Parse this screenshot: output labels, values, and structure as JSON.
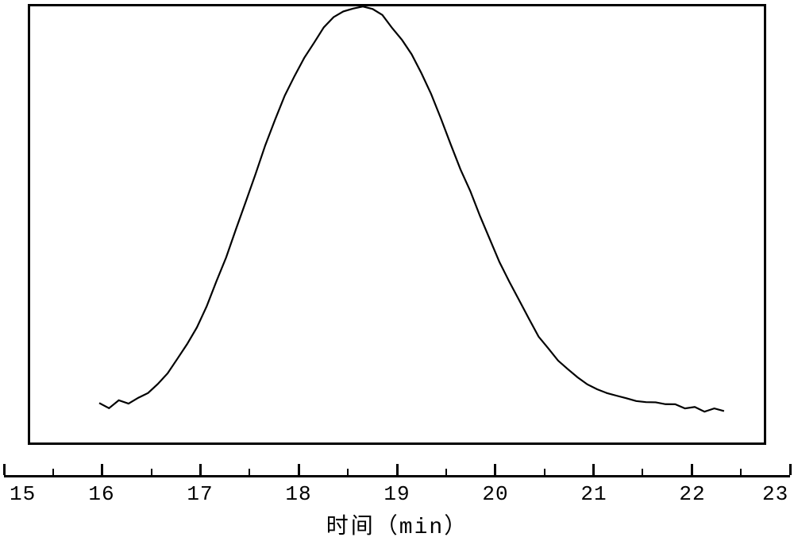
{
  "chart": {
    "type": "line",
    "background_color": "#ffffff",
    "border_color": "#000000",
    "border_width": 3,
    "curve_color": "#000000",
    "curve_width": 2.2,
    "xlim": [
      15,
      23
    ],
    "x_major_ticks": [
      15,
      16,
      17,
      18,
      19,
      20,
      21,
      22,
      23
    ],
    "x_minor_ticks": [
      15.5,
      16.5,
      17.5,
      18.5,
      19.5,
      20.5,
      21.5,
      22.5
    ],
    "tick_labels": {
      "t15": "15",
      "t16": "16",
      "t17": "17",
      "t18": "18",
      "t19": "19",
      "t20": "20",
      "t21": "21",
      "t22": "22",
      "t23": "23"
    },
    "xlabel_cn": "时间",
    "xlabel_unit": "（min）",
    "label_fontsize": 28,
    "tick_fontsize": 26,
    "curve": {
      "x": [
        15.95,
        16.05,
        16.15,
        16.25,
        16.35,
        16.45,
        16.55,
        16.65,
        16.75,
        16.85,
        16.95,
        17.05,
        17.15,
        17.25,
        17.35,
        17.45,
        17.55,
        17.65,
        17.75,
        17.85,
        17.95,
        18.05,
        18.15,
        18.25,
        18.35,
        18.45,
        18.55,
        18.65,
        18.75,
        18.85,
        18.95,
        19.05,
        19.15,
        19.25,
        19.35,
        19.45,
        19.55,
        19.65,
        19.75,
        19.85,
        19.95,
        20.05,
        20.15,
        20.25,
        20.35,
        20.45,
        20.55,
        20.65,
        20.75,
        20.85,
        20.95,
        21.05,
        21.15,
        21.25,
        21.35,
        21.45,
        21.55,
        21.65,
        21.75,
        21.85,
        21.95,
        22.05,
        22.15,
        22.25,
        22.35
      ],
      "y": [
        0.045,
        0.038,
        0.052,
        0.047,
        0.06,
        0.072,
        0.095,
        0.118,
        0.148,
        0.185,
        0.228,
        0.278,
        0.335,
        0.398,
        0.465,
        0.535,
        0.605,
        0.672,
        0.735,
        0.792,
        0.842,
        0.885,
        0.922,
        0.952,
        0.975,
        0.99,
        0.998,
        1.0,
        0.995,
        0.982,
        0.96,
        0.93,
        0.892,
        0.847,
        0.795,
        0.738,
        0.678,
        0.617,
        0.556,
        0.497,
        0.44,
        0.386,
        0.336,
        0.29,
        0.248,
        0.211,
        0.179,
        0.151,
        0.128,
        0.108,
        0.092,
        0.079,
        0.068,
        0.06,
        0.053,
        0.049,
        0.044,
        0.042,
        0.038,
        0.037,
        0.033,
        0.036,
        0.029,
        0.032,
        0.026
      ]
    },
    "y_baseline": 0.0,
    "y_max": 1.0
  }
}
